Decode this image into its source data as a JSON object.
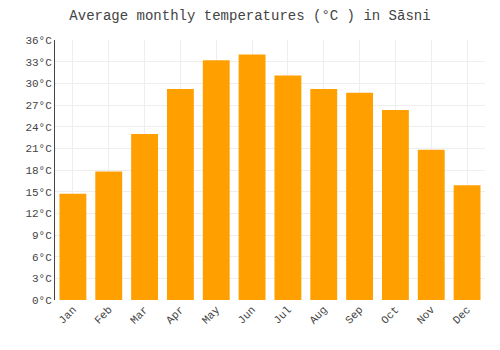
{
  "chart_data": {
    "type": "bar",
    "title": "Average monthly temperatures (°C ) in Sāsni",
    "categories": [
      "Jan",
      "Feb",
      "Mar",
      "Apr",
      "May",
      "Jun",
      "Jul",
      "Aug",
      "Sep",
      "Oct",
      "Nov",
      "Dec"
    ],
    "values": [
      14.7,
      17.8,
      23.0,
      29.2,
      33.2,
      34.0,
      31.1,
      29.2,
      28.7,
      26.3,
      20.8,
      15.9
    ],
    "color": "#FFA000",
    "ylim": [
      0,
      36
    ],
    "yticks": [
      {
        "value": 0,
        "label": "0°C"
      },
      {
        "value": 3,
        "label": "3°C"
      },
      {
        "value": 6,
        "label": "6°C"
      },
      {
        "value": 9,
        "label": "9°C"
      },
      {
        "value": 12,
        "label": "12°C"
      },
      {
        "value": 15,
        "label": "15°C"
      },
      {
        "value": 18,
        "label": "18°C"
      },
      {
        "value": 21,
        "label": "21°C"
      },
      {
        "value": 24,
        "label": "24°C"
      },
      {
        "value": 27,
        "label": "27°C"
      },
      {
        "value": 30,
        "label": "30°C"
      },
      {
        "value": 33,
        "label": "33°C"
      },
      {
        "value": 36,
        "label": "36°C"
      }
    ],
    "grid": true
  }
}
